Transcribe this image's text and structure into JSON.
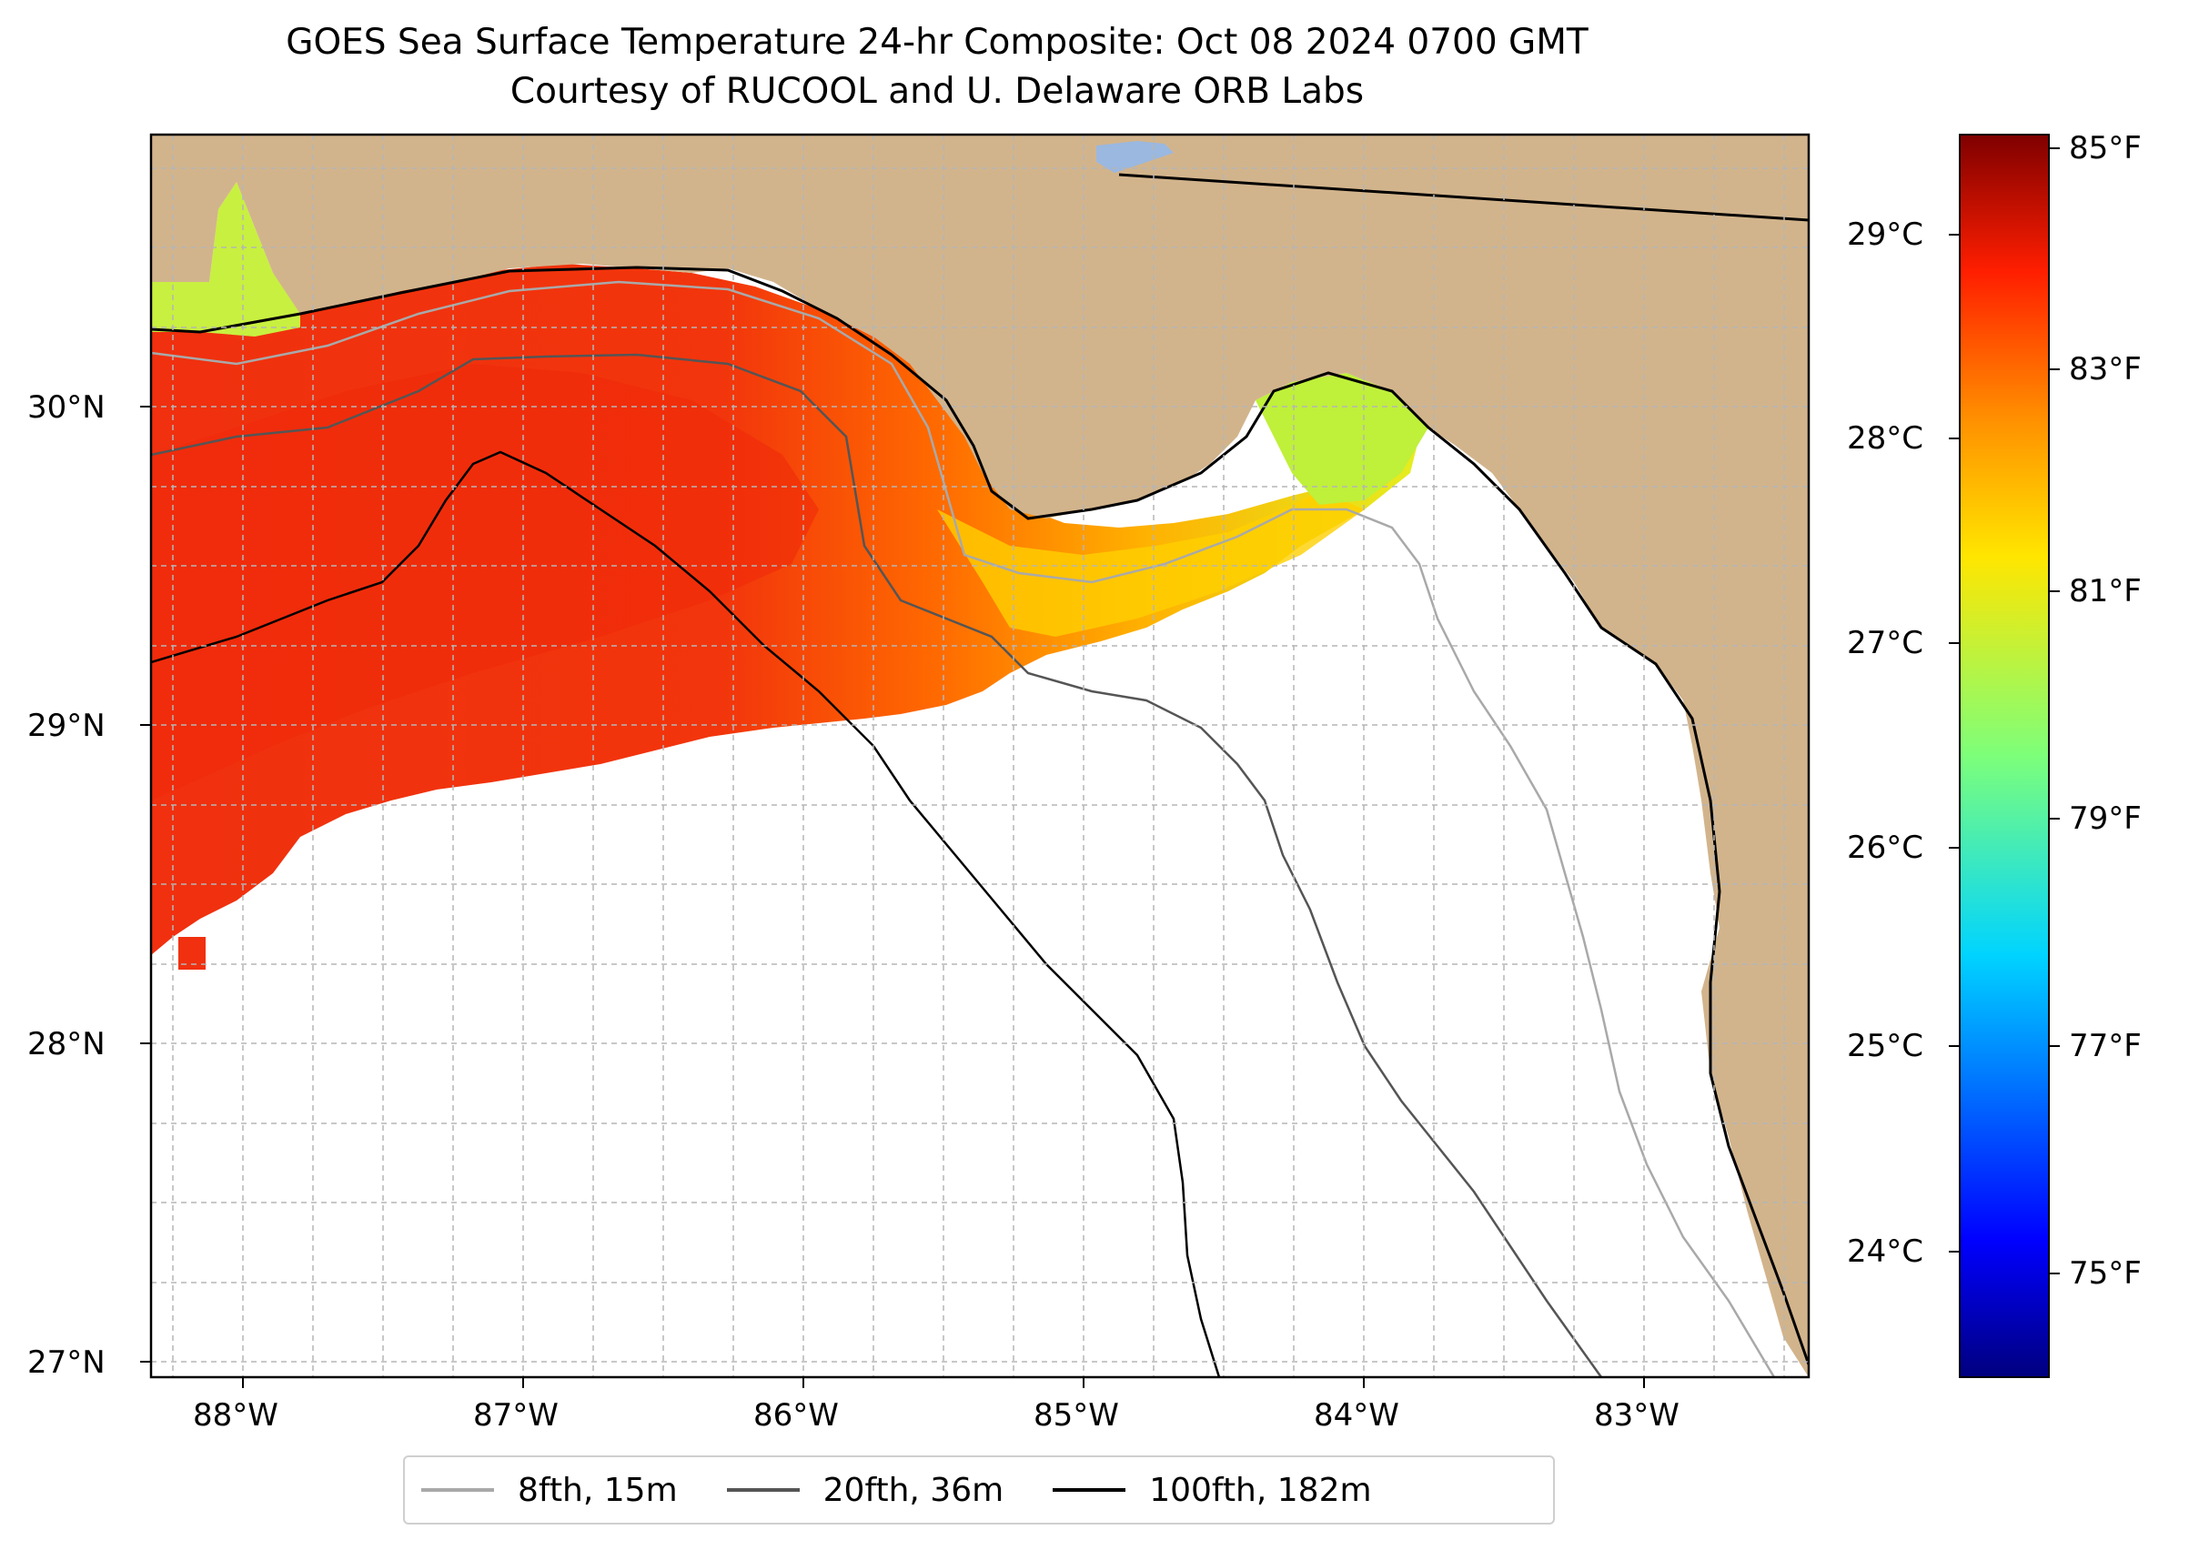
{
  "title": "GOES Sea Surface Temperature 24-hr Composite: Oct 08 2024 0700 GMT",
  "subtitle": "Courtesy of RUCOOL and U. Delaware ORB Labs",
  "lon_ticks": [
    "88°W",
    "87°W",
    "86°W",
    "85°W",
    "84°W",
    "83°W"
  ],
  "lat_ticks": [
    "30°N",
    "29°N",
    "28°N",
    "27°N"
  ],
  "colorbar": {
    "celsius_ticks": [
      "29°C",
      "28°C",
      "27°C",
      "26°C",
      "25°C",
      "24°C"
    ],
    "fahrenheit_ticks": [
      "85°F",
      "83°F",
      "81°F",
      "79°F",
      "77°F",
      "75°F"
    ],
    "colormap": "jet"
  },
  "legend": [
    {
      "label": "8fth, 15m",
      "color": "#a9a9a9"
    },
    {
      "label": "20fth, 36m",
      "color": "#555555"
    },
    {
      "label": "100fth, 182m",
      "color": "#000000"
    }
  ],
  "colors": {
    "land": "#d2b48c",
    "water_no_data": "#ffffff",
    "lake": "#9ab8e0"
  }
}
